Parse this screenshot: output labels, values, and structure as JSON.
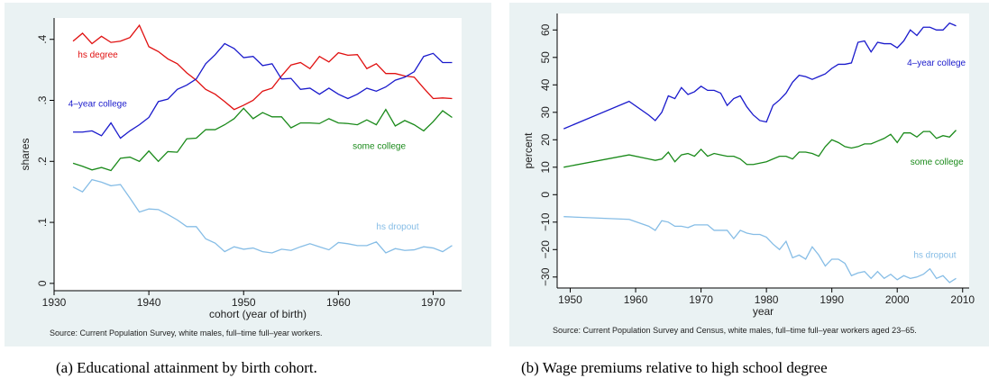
{
  "chart_data": [
    {
      "type": "line",
      "caption": "(a) Educational attainment by birth cohort.",
      "xlabel": "cohort (year of birth)",
      "ylabel": "shares",
      "note": "Source: Current Population Survey, white males, full–time full–year workers.",
      "x": [
        1932,
        1933,
        1934,
        1935,
        1936,
        1937,
        1938,
        1939,
        1940,
        1941,
        1942,
        1943,
        1944,
        1945,
        1946,
        1947,
        1948,
        1949,
        1950,
        1951,
        1952,
        1953,
        1954,
        1955,
        1956,
        1957,
        1958,
        1959,
        1960,
        1961,
        1962,
        1963,
        1964,
        1965,
        1966,
        1967,
        1968,
        1969,
        1970,
        1971,
        1972
      ],
      "series": [
        {
          "name": "hs degree",
          "color": "#e01010",
          "values": [
            0.397,
            0.41,
            0.393,
            0.405,
            0.395,
            0.397,
            0.403,
            0.423,
            0.388,
            0.38,
            0.368,
            0.36,
            0.345,
            0.333,
            0.318,
            0.31,
            0.298,
            0.285,
            0.292,
            0.3,
            0.315,
            0.32,
            0.34,
            0.358,
            0.362,
            0.352,
            0.372,
            0.363,
            0.378,
            0.374,
            0.375,
            0.352,
            0.36,
            0.344,
            0.344,
            0.34,
            0.338,
            0.32,
            0.303,
            0.304,
            0.303
          ]
        },
        {
          "name": "4–year college",
          "color": "#1a1acc",
          "values": [
            0.248,
            0.248,
            0.25,
            0.242,
            0.263,
            0.238,
            0.25,
            0.26,
            0.272,
            0.298,
            0.302,
            0.318,
            0.325,
            0.335,
            0.36,
            0.375,
            0.393,
            0.385,
            0.37,
            0.372,
            0.357,
            0.36,
            0.335,
            0.336,
            0.318,
            0.32,
            0.31,
            0.32,
            0.31,
            0.303,
            0.31,
            0.32,
            0.315,
            0.322,
            0.333,
            0.338,
            0.347,
            0.372,
            0.377,
            0.362,
            0.362
          ]
        },
        {
          "name": "some college",
          "color": "#1a8a1a",
          "values": [
            0.197,
            0.192,
            0.186,
            0.19,
            0.185,
            0.205,
            0.207,
            0.2,
            0.217,
            0.2,
            0.216,
            0.215,
            0.237,
            0.238,
            0.252,
            0.252,
            0.26,
            0.27,
            0.287,
            0.27,
            0.28,
            0.273,
            0.273,
            0.255,
            0.263,
            0.263,
            0.262,
            0.27,
            0.263,
            0.262,
            0.26,
            0.268,
            0.26,
            0.285,
            0.258,
            0.267,
            0.26,
            0.25,
            0.265,
            0.283,
            0.272
          ]
        },
        {
          "name": "hs dropout",
          "color": "#86bde6",
          "values": [
            0.158,
            0.15,
            0.17,
            0.166,
            0.16,
            0.162,
            0.14,
            0.117,
            0.122,
            0.121,
            0.113,
            0.104,
            0.093,
            0.093,
            0.073,
            0.066,
            0.052,
            0.06,
            0.056,
            0.058,
            0.052,
            0.05,
            0.056,
            0.054,
            0.06,
            0.065,
            0.06,
            0.055,
            0.067,
            0.065,
            0.062,
            0.062,
            0.068,
            0.05,
            0.057,
            0.054,
            0.055,
            0.06,
            0.058,
            0.052,
            0.062
          ]
        }
      ],
      "xlim": [
        1930,
        1973
      ],
      "xticks": [
        1930,
        1940,
        1950,
        1960,
        1970
      ],
      "ylim": [
        -0.012,
        0.435
      ],
      "yticks": [
        0,
        {
          "value": 0.1,
          "label": ".1"
        },
        {
          "value": 0.2,
          "label": ".2"
        },
        {
          "value": 0.3,
          "label": ".3"
        },
        {
          "value": 0.4,
          "label": ".4"
        }
      ]
    },
    {
      "type": "line",
      "caption": "(b) Wage premiums relative to high school degree",
      "xlabel": "year",
      "ylabel": "percent",
      "note": "Source: Current Population Survey and Census, white males, full–time full–year workers aged 23–65.",
      "x": [
        1949,
        1959,
        1962,
        1963,
        1964,
        1965,
        1966,
        1967,
        1968,
        1969,
        1970,
        1971,
        1972,
        1973,
        1974,
        1975,
        1976,
        1977,
        1978,
        1979,
        1980,
        1981,
        1982,
        1983,
        1984,
        1985,
        1986,
        1987,
        1988,
        1989,
        1990,
        1991,
        1992,
        1993,
        1994,
        1995,
        1996,
        1997,
        1998,
        1999,
        2000,
        2001,
        2002,
        2003,
        2004,
        2005,
        2006,
        2007,
        2008,
        2009
      ],
      "series": [
        {
          "name": "4–year college",
          "color": "#1a1acc",
          "values": [
            24,
            34,
            29,
            27,
            30,
            36,
            35,
            39,
            36.5,
            37.5,
            39.5,
            38,
            38,
            37,
            32.5,
            35,
            36,
            32,
            29,
            27,
            26.5,
            32.5,
            34.5,
            37,
            41,
            43.5,
            43,
            42,
            43,
            44,
            46,
            47.5,
            47.5,
            48,
            55.5,
            56,
            52,
            55.5,
            55,
            55,
            53.5,
            56,
            60,
            58,
            61,
            61,
            60,
            60,
            62.5,
            61.5
          ]
        },
        {
          "name": "some college",
          "color": "#1a8a1a",
          "values": [
            10,
            14.5,
            13,
            12.5,
            13,
            15.5,
            12,
            14.5,
            15,
            14,
            16.5,
            14,
            15,
            14.5,
            14,
            14,
            13,
            11,
            11,
            11.5,
            12,
            13,
            14,
            14,
            13,
            15.5,
            15.5,
            15,
            14,
            17.5,
            20,
            19,
            17.5,
            17,
            17.5,
            18.5,
            18.5,
            19.5,
            20.5,
            22,
            19,
            22.5,
            22.5,
            21,
            23,
            23,
            20.5,
            21.5,
            21,
            23.5
          ]
        },
        {
          "name": "hs dropout",
          "color": "#86bde6",
          "values": [
            -8,
            -9,
            -11.5,
            -13,
            -9.5,
            -10,
            -11.5,
            -11.5,
            -12,
            -11,
            -11,
            -11,
            -13,
            -13,
            -13,
            -16,
            -13,
            -14,
            -14.5,
            -14.5,
            -15.5,
            -18,
            -20,
            -17,
            -23,
            -22,
            -23.5,
            -19,
            -22,
            -26,
            -23.5,
            -23.5,
            -25,
            -29.5,
            -28.5,
            -28,
            -30.5,
            -28,
            -30.5,
            -29,
            -31,
            -29.5,
            -30.5,
            -30,
            -29,
            -27,
            -30.5,
            -29.5,
            -32,
            -30.5
          ]
        }
      ],
      "xlim": [
        1948,
        2011
      ],
      "xticks": [
        1950,
        1960,
        1970,
        1980,
        1990,
        2000,
        2010
      ],
      "ylim": [
        -34,
        66
      ],
      "yticks": [
        {
          "value": -30,
          "label": "−30"
        },
        {
          "value": -20,
          "label": "−20"
        },
        {
          "value": -10,
          "label": "−10"
        },
        0,
        10,
        20,
        30,
        40,
        50,
        60
      ]
    }
  ]
}
